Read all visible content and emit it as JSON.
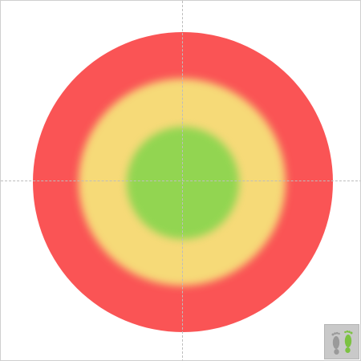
{
  "target": {
    "rings": [
      {
        "name": "outer",
        "color": "#fa5455"
      },
      {
        "name": "middle",
        "color": "#f6da78"
      },
      {
        "name": "inner",
        "color": "#92d551"
      }
    ]
  },
  "guides": {
    "color": "#bdbdbd",
    "style": "dashed"
  },
  "toolbar": {
    "footprint_button": {
      "icon": "footprints-icon",
      "left_foot_color": "#9a9a9a",
      "right_foot_color": "#7cc242"
    }
  }
}
